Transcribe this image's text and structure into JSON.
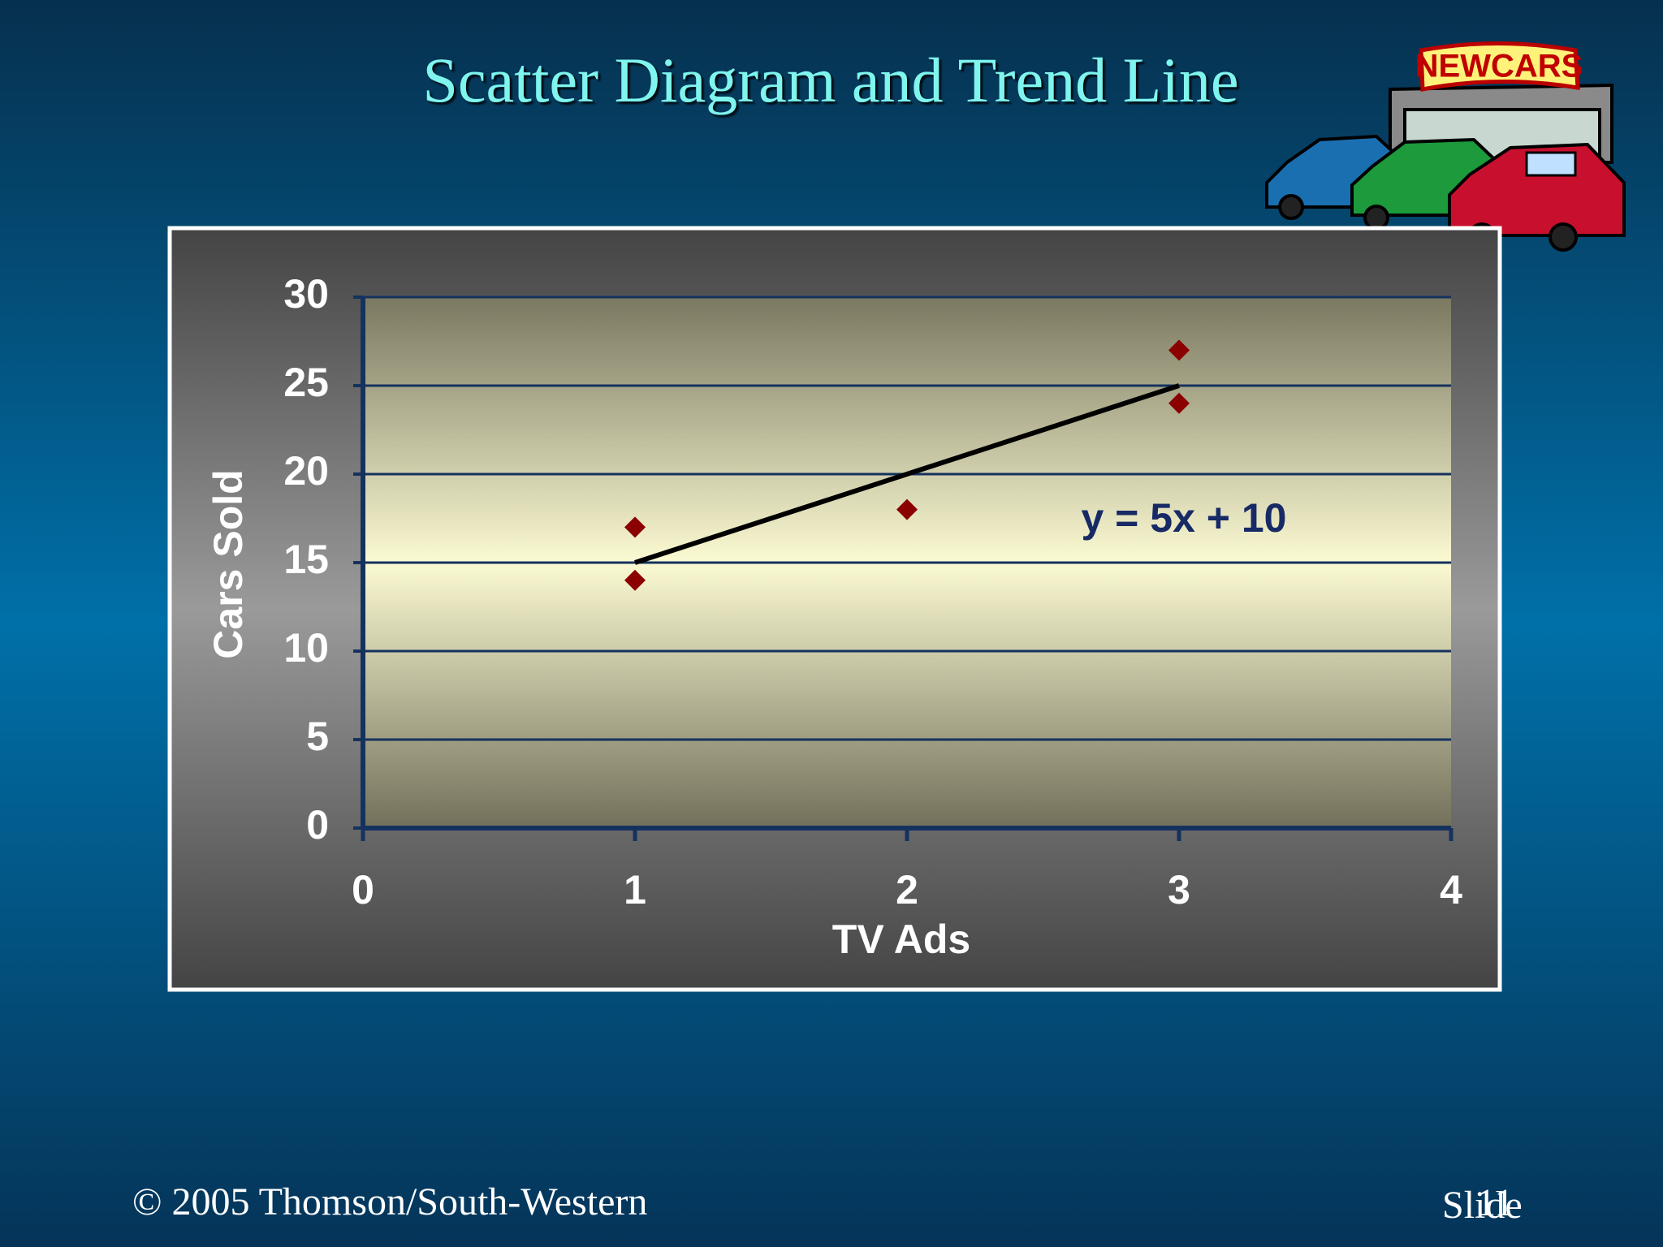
{
  "chart_data": {
    "type": "scatter",
    "title": "Scatter Diagram and Trend Line",
    "xlabel": "TV Ads",
    "ylabel": "Cars Sold",
    "series": [
      {
        "color": "#8b0000",
        "x": [
          1,
          3,
          2,
          1,
          3
        ],
        "values": [
          14,
          24,
          18,
          17,
          27
        ]
      }
    ],
    "trend_line": {
      "color": "#000000",
      "x": [
        1,
        3
      ],
      "values": [
        15,
        25
      ]
    },
    "annotation": "y = 5x + 10",
    "xlim": [
      0,
      4
    ],
    "xticks": [
      0,
      1,
      2,
      3,
      4
    ],
    "ylim": [
      0,
      30
    ],
    "yticks": [
      0,
      5,
      10,
      15,
      20,
      25,
      30
    ],
    "grid": true
  },
  "logo": "NEWCARS",
  "footer": {
    "copyright": "© 2005  Thomson/South-Western",
    "slide_label": "Slide",
    "slide_number": "11"
  }
}
